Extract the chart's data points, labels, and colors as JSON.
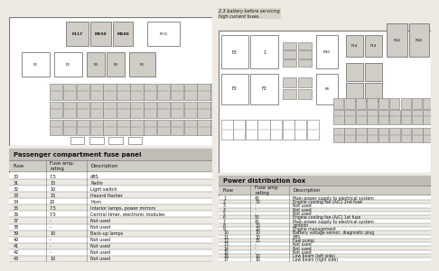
{
  "bg_color": "#ede9e3",
  "white": "#ffffff",
  "light_gray": "#d0ccc6",
  "mid_gray": "#b8b4ae",
  "dark_text": "#111111",
  "border_color": "#777777",
  "header_bg": "#c0bcb6",
  "passenger_title": "Passenger compartment fuse panel",
  "passenger_rows": [
    [
      "30",
      "7.5",
      "ABS"
    ],
    [
      "31",
      "15",
      "Radio"
    ],
    [
      "32",
      "10",
      "Light switch"
    ],
    [
      "33",
      "15",
      "Hazard flasher"
    ],
    [
      "34",
      "20",
      "Horn"
    ],
    [
      "35",
      "7.5",
      "Interior lamps, power mirrors"
    ],
    [
      "36",
      "7.5",
      "Central timer, electronic modules"
    ],
    [
      "37",
      "-",
      "Not used"
    ],
    [
      "38",
      "-",
      "Not used"
    ],
    [
      "39",
      "10",
      "Back-up lamps"
    ],
    [
      "40",
      "-",
      "Not used"
    ],
    [
      "41",
      "-",
      "Not used"
    ],
    [
      "42",
      "-",
      "Not used"
    ],
    [
      "43",
      "10",
      "Not used"
    ]
  ],
  "power_title": "Power distribution box",
  "power_rows": [
    [
      "1",
      "40",
      "Main power supply to electrical system"
    ],
    [
      "2",
      "30",
      "Engine cooling fan (A/C) 2nd fuse"
    ],
    [
      "3",
      "-",
      "Not used"
    ],
    [
      "4",
      "-",
      "Not used"
    ],
    [
      "5",
      "-",
      "Not used"
    ],
    [
      "6",
      "50",
      "Engine cooling fan (A/C) 1st fuse"
    ],
    [
      "7",
      "40",
      "Main power supply to electrical system"
    ],
    [
      "8",
      "30",
      "Ignition"
    ],
    [
      "9",
      "20",
      "Engine management"
    ],
    [
      "10",
      "10",
      "Battery voltage sensor, diagnostic plug"
    ],
    [
      "11",
      "30",
      "ABS"
    ],
    [
      "12",
      "15",
      "Fuel pump"
    ],
    [
      "13",
      "-",
      "Not used"
    ],
    [
      "14",
      "-",
      "Not used"
    ],
    [
      "15",
      "-",
      "Not used"
    ],
    [
      "16",
      "10",
      "Low beam (left side)"
    ],
    [
      "17",
      "10",
      "Low beam (right side)"
    ]
  ],
  "warning_text": "2.3 battery before servicing\nhigh current fuses."
}
